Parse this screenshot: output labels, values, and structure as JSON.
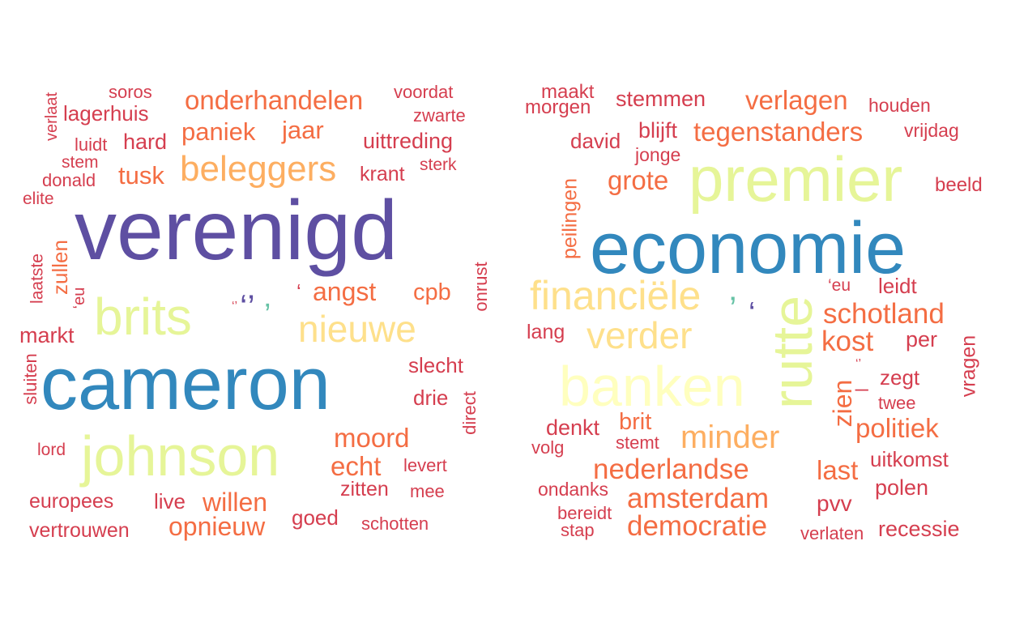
{
  "palette": {
    "purple": "#5e4fa2",
    "blue": "#3288bd",
    "teal": "#66c2a5",
    "lightgreen": "#e6f598",
    "paleyellow": "#ffffbf",
    "lightorange": "#fdae61",
    "yellow": "#fee08b",
    "orange": "#f46d43",
    "red": "#d53e4f",
    "darkred": "#c5303e"
  },
  "clouds": [
    {
      "words": [
        {
          "text": "verenigd",
          "color": "purple"
        },
        {
          "text": "cameron",
          "color": "blue"
        },
        {
          "text": "johnson",
          "color": "lightgreen"
        },
        {
          "text": "brits",
          "color": "lightgreen"
        },
        {
          "text": "beleggers",
          "color": "lightorange"
        },
        {
          "text": "nieuwe",
          "color": "yellow"
        },
        {
          "text": "onderhandelen",
          "color": "orange"
        },
        {
          "text": "paniek",
          "color": "orange"
        },
        {
          "text": "jaar",
          "color": "orange"
        },
        {
          "text": "tusk",
          "color": "orange"
        },
        {
          "text": "angst",
          "color": "orange"
        },
        {
          "text": "cpb",
          "color": "orange"
        },
        {
          "text": "moord",
          "color": "orange"
        },
        {
          "text": "echt",
          "color": "orange"
        },
        {
          "text": "opnieuw",
          "color": "orange"
        },
        {
          "text": "willen",
          "color": "orange"
        },
        {
          "text": "zullen",
          "color": "orange"
        },
        {
          "text": "uittreding",
          "color": "red"
        },
        {
          "text": "lagerhuis",
          "color": "red"
        },
        {
          "text": "hard",
          "color": "red"
        },
        {
          "text": "krant",
          "color": "red"
        },
        {
          "text": "markt",
          "color": "red"
        },
        {
          "text": "slecht",
          "color": "red"
        },
        {
          "text": "drie",
          "color": "red"
        },
        {
          "text": "zitten",
          "color": "red"
        },
        {
          "text": "goed",
          "color": "red"
        },
        {
          "text": "live",
          "color": "red"
        },
        {
          "text": "europees",
          "color": "red"
        },
        {
          "text": "vertrouwen",
          "color": "red"
        },
        {
          "text": "soros",
          "color": "red"
        },
        {
          "text": "voordat",
          "color": "red"
        },
        {
          "text": "zwarte",
          "color": "red"
        },
        {
          "text": "luidt",
          "color": "red"
        },
        {
          "text": "stem",
          "color": "red"
        },
        {
          "text": "donald",
          "color": "red"
        },
        {
          "text": "sterk",
          "color": "red"
        },
        {
          "text": "elite",
          "color": "red"
        },
        {
          "text": "lord",
          "color": "red"
        },
        {
          "text": "levert",
          "color": "red"
        },
        {
          "text": "mee",
          "color": "red"
        },
        {
          "text": "schotten",
          "color": "red"
        },
        {
          "text": "verlaat",
          "color": "red"
        },
        {
          "text": "laatste",
          "color": "red"
        },
        {
          "text": "‘eu",
          "color": "red"
        },
        {
          "text": "sluiten",
          "color": "red"
        },
        {
          "text": "onrust",
          "color": "red"
        },
        {
          "text": "direct",
          "color": "red"
        },
        {
          "text": "‘’",
          "color": "purple"
        },
        {
          "text": "’",
          "color": "teal"
        },
        {
          "text": "‘’",
          "color": "red"
        },
        {
          "text": "‘",
          "color": "red"
        }
      ]
    },
    {
      "words": [
        {
          "text": "economie",
          "color": "blue"
        },
        {
          "text": "premier",
          "color": "lightgreen"
        },
        {
          "text": "rutte",
          "color": "lightgreen"
        },
        {
          "text": "banken",
          "color": "paleyellow"
        },
        {
          "text": "financiële",
          "color": "yellow"
        },
        {
          "text": "verder",
          "color": "yellow"
        },
        {
          "text": "minder",
          "color": "lightorange"
        },
        {
          "text": "verlagen",
          "color": "orange"
        },
        {
          "text": "tegenstanders",
          "color": "orange"
        },
        {
          "text": "grote",
          "color": "orange"
        },
        {
          "text": "schotland",
          "color": "orange"
        },
        {
          "text": "kost",
          "color": "orange"
        },
        {
          "text": "nederlandse",
          "color": "orange"
        },
        {
          "text": "amsterdam",
          "color": "orange"
        },
        {
          "text": "democratie",
          "color": "orange"
        },
        {
          "text": "last",
          "color": "orange"
        },
        {
          "text": "zien",
          "color": "orange"
        },
        {
          "text": "politiek",
          "color": "orange"
        },
        {
          "text": "brit",
          "color": "orange"
        },
        {
          "text": "peilingen",
          "color": "orange"
        },
        {
          "text": "stemmen",
          "color": "red"
        },
        {
          "text": "maakt",
          "color": "red"
        },
        {
          "text": "morgen",
          "color": "red"
        },
        {
          "text": "houden",
          "color": "red"
        },
        {
          "text": "david",
          "color": "red"
        },
        {
          "text": "blijft",
          "color": "red"
        },
        {
          "text": "jonge",
          "color": "red"
        },
        {
          "text": "vrijdag",
          "color": "red"
        },
        {
          "text": "beeld",
          "color": "red"
        },
        {
          "text": "‘eu",
          "color": "red"
        },
        {
          "text": "leidt",
          "color": "red"
        },
        {
          "text": "lang",
          "color": "red"
        },
        {
          "text": "per",
          "color": "red"
        },
        {
          "text": "zegt",
          "color": "red"
        },
        {
          "text": "twee",
          "color": "red"
        },
        {
          "text": "vragen",
          "color": "red"
        },
        {
          "text": "denkt",
          "color": "red"
        },
        {
          "text": "volg",
          "color": "red"
        },
        {
          "text": "stemt",
          "color": "red"
        },
        {
          "text": "uitkomst",
          "color": "red"
        },
        {
          "text": "ondanks",
          "color": "red"
        },
        {
          "text": "polen",
          "color": "red"
        },
        {
          "text": "pvv",
          "color": "red"
        },
        {
          "text": "bereidt",
          "color": "red"
        },
        {
          "text": "stap",
          "color": "red"
        },
        {
          "text": "verlaten",
          "color": "red"
        },
        {
          "text": "recessie",
          "color": "red"
        },
        {
          "text": "’",
          "color": "teal"
        },
        {
          "text": "‘",
          "color": "purple"
        },
        {
          "text": "‘’",
          "color": "red"
        },
        {
          "text": "_",
          "color": "red"
        }
      ]
    }
  ]
}
